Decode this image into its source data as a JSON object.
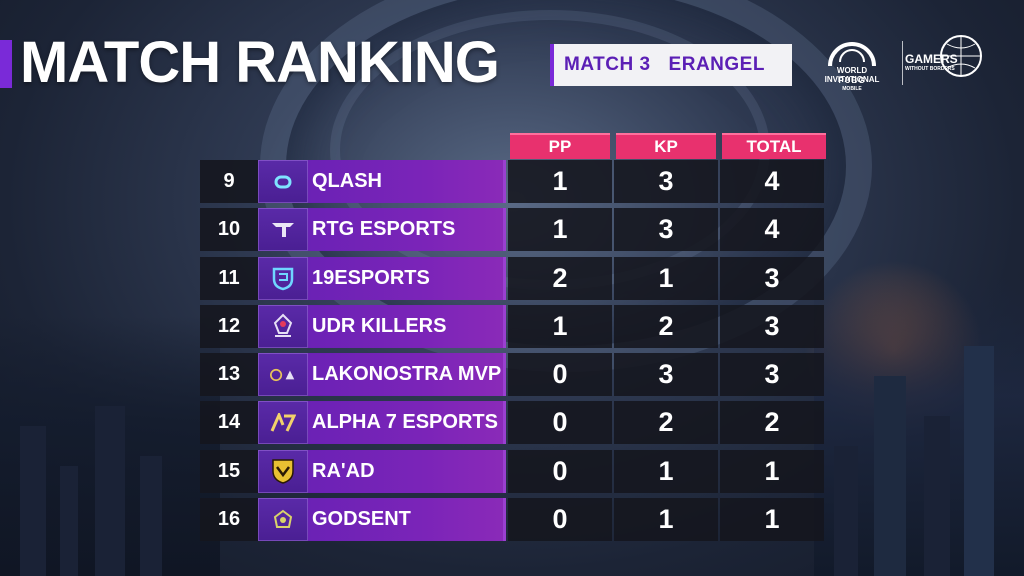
{
  "header": {
    "title": "MATCH RANKING",
    "match_label": "MATCH 3",
    "map_label": "ERANGEL"
  },
  "logos": {
    "event_line1": "WORLD INVITATIONAL",
    "event_line2": "PUBG",
    "event_line3": "MOBILE",
    "partner_line1": "GAMERS",
    "partner_line2": "WITHOUT BORDERS"
  },
  "columns": {
    "pp": "PP",
    "kp": "KP",
    "total": "TOTAL"
  },
  "colors": {
    "accent_purple": "#7a2ad8",
    "header_pink": "#e8316e",
    "team_bar": "#6b22b5",
    "cell_dark": "#14161e"
  },
  "rows": [
    {
      "rank": "9",
      "team": "QLASH",
      "pp": "1",
      "kp": "3",
      "total": "4",
      "logo": "qlash-logo-icon"
    },
    {
      "rank": "10",
      "team": "RTG ESPORTS",
      "pp": "1",
      "kp": "3",
      "total": "4",
      "logo": "rtg-logo-icon"
    },
    {
      "rank": "11",
      "team": "19ESPORTS",
      "pp": "2",
      "kp": "1",
      "total": "3",
      "logo": "19esports-logo-icon"
    },
    {
      "rank": "12",
      "team": "UDR KILLERS",
      "pp": "1",
      "kp": "2",
      "total": "3",
      "logo": "udr-killers-logo-icon"
    },
    {
      "rank": "13",
      "team": "LAKONOSTRA MVP",
      "pp": "0",
      "kp": "3",
      "total": "3",
      "logo": "lakonostra-logo-icon"
    },
    {
      "rank": "14",
      "team": "ALPHA 7 ESPORTS",
      "pp": "0",
      "kp": "2",
      "total": "2",
      "logo": "alpha7-logo-icon"
    },
    {
      "rank": "15",
      "team": "RA'AD",
      "pp": "0",
      "kp": "1",
      "total": "1",
      "logo": "raad-logo-icon"
    },
    {
      "rank": "16",
      "team": "GODSENT",
      "pp": "0",
      "kp": "1",
      "total": "1",
      "logo": "godsent-logo-icon"
    }
  ]
}
